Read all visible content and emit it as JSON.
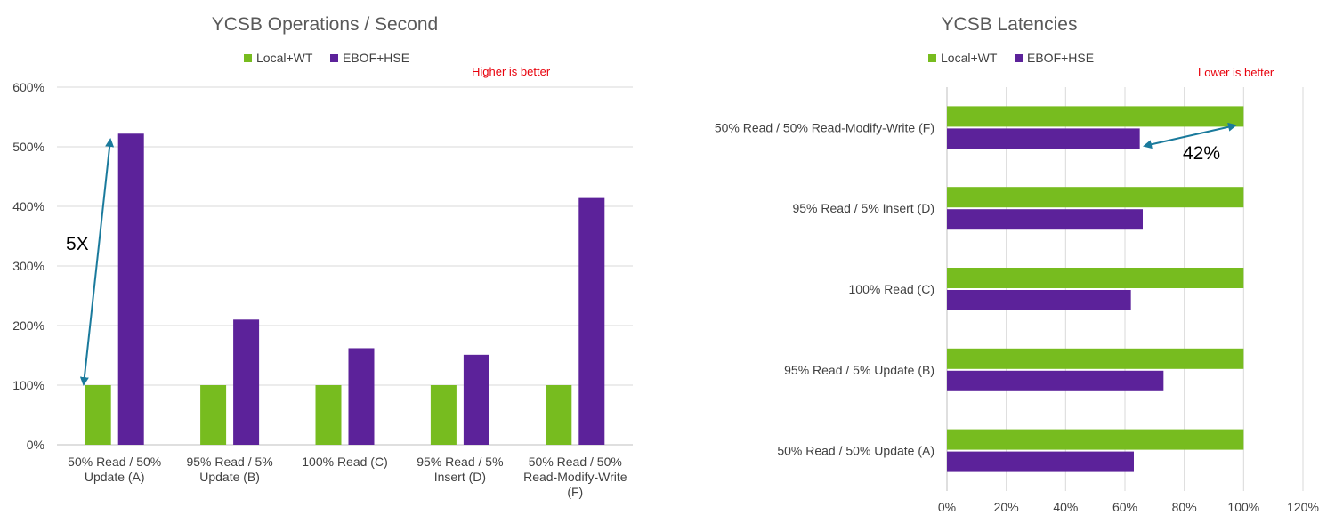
{
  "colors": {
    "local": "#77BC1F",
    "ebof": "#5C229A",
    "note": "#E8000B",
    "arrow": "#1A7A9C",
    "grid": "#D9D9D9",
    "text": "#404040",
    "axis": "#BFBFBF"
  },
  "chart_data": [
    {
      "type": "bar",
      "orientation": "vertical",
      "title": "YCSB Operations / Second",
      "note": "Higher is better",
      "annotation": "5X",
      "categories": [
        [
          "50% Read / 50%",
          "Update (A)"
        ],
        [
          "95% Read / 5%",
          "Update (B)"
        ],
        [
          "100% Read (C)"
        ],
        [
          "95% Read / 5%",
          "Insert (D)"
        ],
        [
          "50% Read / 50%",
          "Read-Modify-Write",
          "(F)"
        ]
      ],
      "series": [
        {
          "name": "Local+WT",
          "values": [
            100,
            100,
            100,
            100,
            100
          ]
        },
        {
          "name": "EBOF+HSE",
          "values": [
            522,
            210,
            162,
            151,
            414
          ]
        }
      ],
      "ylim": [
        0,
        600
      ],
      "yticks": [
        "0%",
        "100%",
        "200%",
        "300%",
        "400%",
        "500%",
        "600%"
      ],
      "grid": true,
      "legend": "top-center"
    },
    {
      "type": "bar",
      "orientation": "horizontal",
      "title": "YCSB Latencies",
      "note": "Lower is better",
      "annotation": "42%",
      "categories": [
        "50% Read / 50% Read-Modify-Write (F)",
        "95% Read / 5% Insert (D)",
        "100% Read (C)",
        "95% Read / 5% Update (B)",
        "50% Read / 50% Update (A)"
      ],
      "series": [
        {
          "name": "Local+WT",
          "values": [
            100,
            100,
            100,
            100,
            100
          ]
        },
        {
          "name": "EBOF+HSE",
          "values": [
            65,
            66,
            62,
            73,
            63
          ]
        }
      ],
      "xlim": [
        0,
        120
      ],
      "xticks": [
        "0%",
        "20%",
        "40%",
        "60%",
        "80%",
        "100%",
        "120%"
      ],
      "grid": true,
      "legend": "top-center"
    }
  ]
}
